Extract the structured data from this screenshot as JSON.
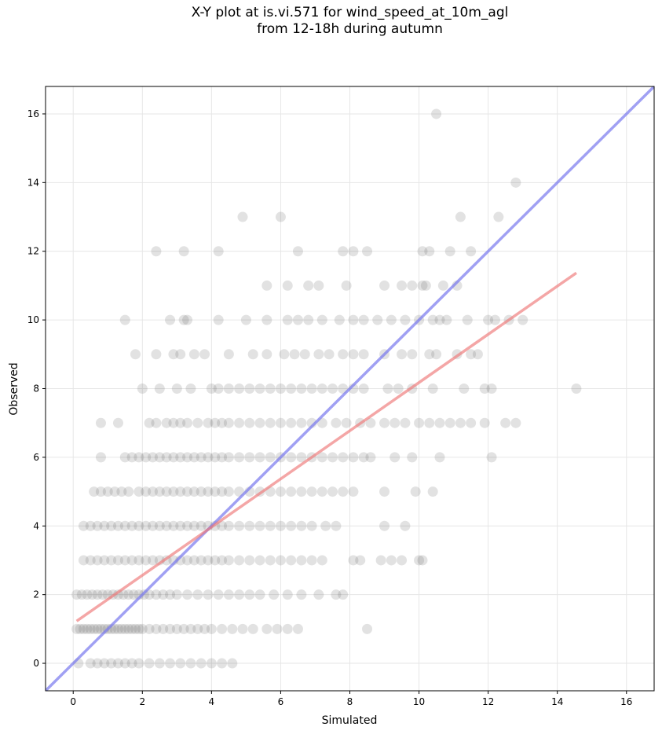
{
  "chart_data": {
    "type": "scatter",
    "title": "X-Y plot at is.vi.571 for wind_speed_at_10m_agl",
    "subtitle": "from 12-18h during autumn",
    "xlabel": "Simulated",
    "ylabel": "Observed",
    "xlim": [
      -0.8,
      16.8
    ],
    "ylim": [
      -0.8,
      16.8
    ],
    "xticks": [
      0,
      2,
      4,
      6,
      8,
      10,
      12,
      14,
      16
    ],
    "yticks": [
      0,
      2,
      4,
      6,
      8,
      10,
      12,
      14,
      16
    ],
    "grid": true,
    "colors": {
      "points": "#555555",
      "identity_line": "#7777ee",
      "regression_line": "#ee7777",
      "grid": "#e6e6e6"
    },
    "identity_line": {
      "x": [
        -0.8,
        16.8
      ],
      "y": [
        -0.8,
        16.8
      ]
    },
    "regression_line": {
      "x": [
        0.1,
        14.55
      ],
      "y": [
        1.23,
        11.37
      ]
    },
    "points": [
      {
        "x": 0.15,
        "y": 0
      },
      {
        "x": 0.5,
        "y": 0
      },
      {
        "x": 0.7,
        "y": 0
      },
      {
        "x": 0.9,
        "y": 0
      },
      {
        "x": 1.1,
        "y": 0
      },
      {
        "x": 1.3,
        "y": 0
      },
      {
        "x": 1.5,
        "y": 0
      },
      {
        "x": 1.7,
        "y": 0
      },
      {
        "x": 1.9,
        "y": 0
      },
      {
        "x": 2.2,
        "y": 0
      },
      {
        "x": 2.5,
        "y": 0
      },
      {
        "x": 2.8,
        "y": 0
      },
      {
        "x": 3.1,
        "y": 0
      },
      {
        "x": 3.4,
        "y": 0
      },
      {
        "x": 3.7,
        "y": 0
      },
      {
        "x": 4.0,
        "y": 0
      },
      {
        "x": 4.3,
        "y": 0
      },
      {
        "x": 4.6,
        "y": 0
      },
      {
        "x": 0.1,
        "y": 1
      },
      {
        "x": 0.2,
        "y": 1
      },
      {
        "x": 0.3,
        "y": 1
      },
      {
        "x": 0.4,
        "y": 1
      },
      {
        "x": 0.5,
        "y": 1
      },
      {
        "x": 0.6,
        "y": 1
      },
      {
        "x": 0.7,
        "y": 1
      },
      {
        "x": 0.8,
        "y": 1
      },
      {
        "x": 0.9,
        "y": 1
      },
      {
        "x": 1.0,
        "y": 1
      },
      {
        "x": 1.1,
        "y": 1
      },
      {
        "x": 1.2,
        "y": 1
      },
      {
        "x": 1.3,
        "y": 1
      },
      {
        "x": 1.4,
        "y": 1
      },
      {
        "x": 1.5,
        "y": 1
      },
      {
        "x": 1.6,
        "y": 1
      },
      {
        "x": 1.7,
        "y": 1
      },
      {
        "x": 1.8,
        "y": 1
      },
      {
        "x": 1.9,
        "y": 1
      },
      {
        "x": 2.0,
        "y": 1
      },
      {
        "x": 2.2,
        "y": 1
      },
      {
        "x": 2.4,
        "y": 1
      },
      {
        "x": 2.6,
        "y": 1
      },
      {
        "x": 2.8,
        "y": 1
      },
      {
        "x": 3.0,
        "y": 1
      },
      {
        "x": 3.2,
        "y": 1
      },
      {
        "x": 3.4,
        "y": 1
      },
      {
        "x": 3.6,
        "y": 1
      },
      {
        "x": 3.8,
        "y": 1
      },
      {
        "x": 4.0,
        "y": 1
      },
      {
        "x": 4.3,
        "y": 1
      },
      {
        "x": 4.6,
        "y": 1
      },
      {
        "x": 4.9,
        "y": 1
      },
      {
        "x": 5.2,
        "y": 1
      },
      {
        "x": 5.6,
        "y": 1
      },
      {
        "x": 5.9,
        "y": 1
      },
      {
        "x": 6.2,
        "y": 1
      },
      {
        "x": 6.5,
        "y": 1
      },
      {
        "x": 8.5,
        "y": 1
      },
      {
        "x": 0.1,
        "y": 2
      },
      {
        "x": 0.25,
        "y": 2
      },
      {
        "x": 0.4,
        "y": 2
      },
      {
        "x": 0.55,
        "y": 2
      },
      {
        "x": 0.7,
        "y": 2
      },
      {
        "x": 0.85,
        "y": 2
      },
      {
        "x": 1.0,
        "y": 2
      },
      {
        "x": 1.15,
        "y": 2
      },
      {
        "x": 1.3,
        "y": 2
      },
      {
        "x": 1.45,
        "y": 2
      },
      {
        "x": 1.6,
        "y": 2
      },
      {
        "x": 1.75,
        "y": 2
      },
      {
        "x": 1.9,
        "y": 2
      },
      {
        "x": 2.05,
        "y": 2
      },
      {
        "x": 2.2,
        "y": 2
      },
      {
        "x": 2.4,
        "y": 2
      },
      {
        "x": 2.6,
        "y": 2
      },
      {
        "x": 2.8,
        "y": 2
      },
      {
        "x": 3.0,
        "y": 2
      },
      {
        "x": 3.3,
        "y": 2
      },
      {
        "x": 3.6,
        "y": 2
      },
      {
        "x": 3.9,
        "y": 2
      },
      {
        "x": 4.2,
        "y": 2
      },
      {
        "x": 4.5,
        "y": 2
      },
      {
        "x": 4.8,
        "y": 2
      },
      {
        "x": 5.1,
        "y": 2
      },
      {
        "x": 5.4,
        "y": 2
      },
      {
        "x": 5.8,
        "y": 2
      },
      {
        "x": 6.2,
        "y": 2
      },
      {
        "x": 6.6,
        "y": 2
      },
      {
        "x": 7.1,
        "y": 2
      },
      {
        "x": 7.6,
        "y": 2
      },
      {
        "x": 7.8,
        "y": 2
      },
      {
        "x": 0.3,
        "y": 3
      },
      {
        "x": 0.5,
        "y": 3
      },
      {
        "x": 0.7,
        "y": 3
      },
      {
        "x": 0.9,
        "y": 3
      },
      {
        "x": 1.1,
        "y": 3
      },
      {
        "x": 1.3,
        "y": 3
      },
      {
        "x": 1.5,
        "y": 3
      },
      {
        "x": 1.7,
        "y": 3
      },
      {
        "x": 1.9,
        "y": 3
      },
      {
        "x": 2.1,
        "y": 3
      },
      {
        "x": 2.3,
        "y": 3
      },
      {
        "x": 2.5,
        "y": 3
      },
      {
        "x": 2.7,
        "y": 3
      },
      {
        "x": 2.9,
        "y": 3
      },
      {
        "x": 3.1,
        "y": 3
      },
      {
        "x": 3.3,
        "y": 3
      },
      {
        "x": 3.5,
        "y": 3
      },
      {
        "x": 3.7,
        "y": 3
      },
      {
        "x": 3.9,
        "y": 3
      },
      {
        "x": 4.1,
        "y": 3
      },
      {
        "x": 4.3,
        "y": 3
      },
      {
        "x": 4.5,
        "y": 3
      },
      {
        "x": 4.8,
        "y": 3
      },
      {
        "x": 5.1,
        "y": 3
      },
      {
        "x": 5.4,
        "y": 3
      },
      {
        "x": 5.7,
        "y": 3
      },
      {
        "x": 6.0,
        "y": 3
      },
      {
        "x": 6.3,
        "y": 3
      },
      {
        "x": 6.6,
        "y": 3
      },
      {
        "x": 6.9,
        "y": 3
      },
      {
        "x": 7.2,
        "y": 3
      },
      {
        "x": 8.1,
        "y": 3
      },
      {
        "x": 8.3,
        "y": 3
      },
      {
        "x": 8.9,
        "y": 3
      },
      {
        "x": 9.2,
        "y": 3
      },
      {
        "x": 9.5,
        "y": 3
      },
      {
        "x": 10.0,
        "y": 3
      },
      {
        "x": 10.1,
        "y": 3
      },
      {
        "x": 0.3,
        "y": 4
      },
      {
        "x": 0.5,
        "y": 4
      },
      {
        "x": 0.7,
        "y": 4
      },
      {
        "x": 0.9,
        "y": 4
      },
      {
        "x": 1.1,
        "y": 4
      },
      {
        "x": 1.3,
        "y": 4
      },
      {
        "x": 1.5,
        "y": 4
      },
      {
        "x": 1.7,
        "y": 4
      },
      {
        "x": 1.9,
        "y": 4
      },
      {
        "x": 2.1,
        "y": 4
      },
      {
        "x": 2.3,
        "y": 4
      },
      {
        "x": 2.5,
        "y": 4
      },
      {
        "x": 2.7,
        "y": 4
      },
      {
        "x": 2.9,
        "y": 4
      },
      {
        "x": 3.1,
        "y": 4
      },
      {
        "x": 3.3,
        "y": 4
      },
      {
        "x": 3.5,
        "y": 4
      },
      {
        "x": 3.7,
        "y": 4
      },
      {
        "x": 3.9,
        "y": 4
      },
      {
        "x": 4.1,
        "y": 4
      },
      {
        "x": 4.3,
        "y": 4
      },
      {
        "x": 4.5,
        "y": 4
      },
      {
        "x": 4.8,
        "y": 4
      },
      {
        "x": 5.1,
        "y": 4
      },
      {
        "x": 5.4,
        "y": 4
      },
      {
        "x": 5.7,
        "y": 4
      },
      {
        "x": 6.0,
        "y": 4
      },
      {
        "x": 6.3,
        "y": 4
      },
      {
        "x": 6.6,
        "y": 4
      },
      {
        "x": 6.9,
        "y": 4
      },
      {
        "x": 7.3,
        "y": 4
      },
      {
        "x": 7.6,
        "y": 4
      },
      {
        "x": 9.0,
        "y": 4
      },
      {
        "x": 9.6,
        "y": 4
      },
      {
        "x": 0.6,
        "y": 5
      },
      {
        "x": 0.8,
        "y": 5
      },
      {
        "x": 1.0,
        "y": 5
      },
      {
        "x": 1.2,
        "y": 5
      },
      {
        "x": 1.4,
        "y": 5
      },
      {
        "x": 1.6,
        "y": 5
      },
      {
        "x": 1.9,
        "y": 5
      },
      {
        "x": 2.1,
        "y": 5
      },
      {
        "x": 2.3,
        "y": 5
      },
      {
        "x": 2.5,
        "y": 5
      },
      {
        "x": 2.7,
        "y": 5
      },
      {
        "x": 2.9,
        "y": 5
      },
      {
        "x": 3.1,
        "y": 5
      },
      {
        "x": 3.3,
        "y": 5
      },
      {
        "x": 3.5,
        "y": 5
      },
      {
        "x": 3.7,
        "y": 5
      },
      {
        "x": 3.9,
        "y": 5
      },
      {
        "x": 4.1,
        "y": 5
      },
      {
        "x": 4.3,
        "y": 5
      },
      {
        "x": 4.5,
        "y": 5
      },
      {
        "x": 4.8,
        "y": 5
      },
      {
        "x": 5.1,
        "y": 5
      },
      {
        "x": 5.4,
        "y": 5
      },
      {
        "x": 5.7,
        "y": 5
      },
      {
        "x": 6.0,
        "y": 5
      },
      {
        "x": 6.3,
        "y": 5
      },
      {
        "x": 6.6,
        "y": 5
      },
      {
        "x": 6.9,
        "y": 5
      },
      {
        "x": 7.2,
        "y": 5
      },
      {
        "x": 7.5,
        "y": 5
      },
      {
        "x": 7.8,
        "y": 5
      },
      {
        "x": 8.1,
        "y": 5
      },
      {
        "x": 9.0,
        "y": 5
      },
      {
        "x": 9.9,
        "y": 5
      },
      {
        "x": 10.4,
        "y": 5
      },
      {
        "x": 0.8,
        "y": 6
      },
      {
        "x": 1.5,
        "y": 6
      },
      {
        "x": 1.7,
        "y": 6
      },
      {
        "x": 1.9,
        "y": 6
      },
      {
        "x": 2.1,
        "y": 6
      },
      {
        "x": 2.3,
        "y": 6
      },
      {
        "x": 2.5,
        "y": 6
      },
      {
        "x": 2.7,
        "y": 6
      },
      {
        "x": 2.9,
        "y": 6
      },
      {
        "x": 3.1,
        "y": 6
      },
      {
        "x": 3.3,
        "y": 6
      },
      {
        "x": 3.5,
        "y": 6
      },
      {
        "x": 3.7,
        "y": 6
      },
      {
        "x": 3.9,
        "y": 6
      },
      {
        "x": 4.1,
        "y": 6
      },
      {
        "x": 4.3,
        "y": 6
      },
      {
        "x": 4.5,
        "y": 6
      },
      {
        "x": 4.8,
        "y": 6
      },
      {
        "x": 5.1,
        "y": 6
      },
      {
        "x": 5.4,
        "y": 6
      },
      {
        "x": 5.7,
        "y": 6
      },
      {
        "x": 6.0,
        "y": 6
      },
      {
        "x": 6.3,
        "y": 6
      },
      {
        "x": 6.6,
        "y": 6
      },
      {
        "x": 6.9,
        "y": 6
      },
      {
        "x": 7.2,
        "y": 6
      },
      {
        "x": 7.5,
        "y": 6
      },
      {
        "x": 7.8,
        "y": 6
      },
      {
        "x": 8.1,
        "y": 6
      },
      {
        "x": 8.4,
        "y": 6
      },
      {
        "x": 8.6,
        "y": 6
      },
      {
        "x": 9.3,
        "y": 6
      },
      {
        "x": 9.8,
        "y": 6
      },
      {
        "x": 10.6,
        "y": 6
      },
      {
        "x": 12.1,
        "y": 6
      },
      {
        "x": 0.8,
        "y": 7
      },
      {
        "x": 1.3,
        "y": 7
      },
      {
        "x": 2.2,
        "y": 7
      },
      {
        "x": 2.4,
        "y": 7
      },
      {
        "x": 2.7,
        "y": 7
      },
      {
        "x": 2.9,
        "y": 7
      },
      {
        "x": 3.1,
        "y": 7
      },
      {
        "x": 3.3,
        "y": 7
      },
      {
        "x": 3.6,
        "y": 7
      },
      {
        "x": 3.9,
        "y": 7
      },
      {
        "x": 4.1,
        "y": 7
      },
      {
        "x": 4.3,
        "y": 7
      },
      {
        "x": 4.5,
        "y": 7
      },
      {
        "x": 4.8,
        "y": 7
      },
      {
        "x": 5.1,
        "y": 7
      },
      {
        "x": 5.4,
        "y": 7
      },
      {
        "x": 5.7,
        "y": 7
      },
      {
        "x": 6.0,
        "y": 7
      },
      {
        "x": 6.3,
        "y": 7
      },
      {
        "x": 6.6,
        "y": 7
      },
      {
        "x": 6.9,
        "y": 7
      },
      {
        "x": 7.2,
        "y": 7
      },
      {
        "x": 7.6,
        "y": 7
      },
      {
        "x": 7.9,
        "y": 7
      },
      {
        "x": 8.3,
        "y": 7
      },
      {
        "x": 8.6,
        "y": 7
      },
      {
        "x": 9.0,
        "y": 7
      },
      {
        "x": 9.3,
        "y": 7
      },
      {
        "x": 9.6,
        "y": 7
      },
      {
        "x": 10.0,
        "y": 7
      },
      {
        "x": 10.3,
        "y": 7
      },
      {
        "x": 10.6,
        "y": 7
      },
      {
        "x": 10.9,
        "y": 7
      },
      {
        "x": 11.2,
        "y": 7
      },
      {
        "x": 11.5,
        "y": 7
      },
      {
        "x": 11.9,
        "y": 7
      },
      {
        "x": 12.5,
        "y": 7
      },
      {
        "x": 12.8,
        "y": 7
      },
      {
        "x": 2.0,
        "y": 8
      },
      {
        "x": 2.5,
        "y": 8
      },
      {
        "x": 3.0,
        "y": 8
      },
      {
        "x": 3.4,
        "y": 8
      },
      {
        "x": 4.0,
        "y": 8
      },
      {
        "x": 4.2,
        "y": 8
      },
      {
        "x": 4.5,
        "y": 8
      },
      {
        "x": 4.8,
        "y": 8
      },
      {
        "x": 5.1,
        "y": 8
      },
      {
        "x": 5.4,
        "y": 8
      },
      {
        "x": 5.7,
        "y": 8
      },
      {
        "x": 6.0,
        "y": 8
      },
      {
        "x": 6.3,
        "y": 8
      },
      {
        "x": 6.6,
        "y": 8
      },
      {
        "x": 6.9,
        "y": 8
      },
      {
        "x": 7.2,
        "y": 8
      },
      {
        "x": 7.5,
        "y": 8
      },
      {
        "x": 7.8,
        "y": 8
      },
      {
        "x": 8.1,
        "y": 8
      },
      {
        "x": 8.4,
        "y": 8
      },
      {
        "x": 9.1,
        "y": 8
      },
      {
        "x": 9.4,
        "y": 8
      },
      {
        "x": 9.8,
        "y": 8
      },
      {
        "x": 10.4,
        "y": 8
      },
      {
        "x": 11.3,
        "y": 8
      },
      {
        "x": 11.9,
        "y": 8
      },
      {
        "x": 12.1,
        "y": 8
      },
      {
        "x": 14.55,
        "y": 8
      },
      {
        "x": 1.8,
        "y": 9
      },
      {
        "x": 2.4,
        "y": 9
      },
      {
        "x": 2.9,
        "y": 9
      },
      {
        "x": 3.1,
        "y": 9
      },
      {
        "x": 3.5,
        "y": 9
      },
      {
        "x": 3.8,
        "y": 9
      },
      {
        "x": 4.5,
        "y": 9
      },
      {
        "x": 5.2,
        "y": 9
      },
      {
        "x": 5.6,
        "y": 9
      },
      {
        "x": 6.1,
        "y": 9
      },
      {
        "x": 6.4,
        "y": 9
      },
      {
        "x": 6.7,
        "y": 9
      },
      {
        "x": 7.1,
        "y": 9
      },
      {
        "x": 7.4,
        "y": 9
      },
      {
        "x": 7.8,
        "y": 9
      },
      {
        "x": 8.1,
        "y": 9
      },
      {
        "x": 8.4,
        "y": 9
      },
      {
        "x": 9.0,
        "y": 9
      },
      {
        "x": 9.5,
        "y": 9
      },
      {
        "x": 9.8,
        "y": 9
      },
      {
        "x": 10.3,
        "y": 9
      },
      {
        "x": 10.5,
        "y": 9
      },
      {
        "x": 11.1,
        "y": 9
      },
      {
        "x": 11.5,
        "y": 9
      },
      {
        "x": 11.7,
        "y": 9
      },
      {
        "x": 1.5,
        "y": 10
      },
      {
        "x": 2.8,
        "y": 10
      },
      {
        "x": 3.2,
        "y": 10
      },
      {
        "x": 3.3,
        "y": 10
      },
      {
        "x": 4.2,
        "y": 10
      },
      {
        "x": 5.0,
        "y": 10
      },
      {
        "x": 5.6,
        "y": 10
      },
      {
        "x": 6.2,
        "y": 10
      },
      {
        "x": 6.5,
        "y": 10
      },
      {
        "x": 6.8,
        "y": 10
      },
      {
        "x": 7.2,
        "y": 10
      },
      {
        "x": 7.7,
        "y": 10
      },
      {
        "x": 8.1,
        "y": 10
      },
      {
        "x": 8.4,
        "y": 10
      },
      {
        "x": 8.8,
        "y": 10
      },
      {
        "x": 9.2,
        "y": 10
      },
      {
        "x": 9.6,
        "y": 10
      },
      {
        "x": 10.0,
        "y": 10
      },
      {
        "x": 10.4,
        "y": 10
      },
      {
        "x": 10.6,
        "y": 10
      },
      {
        "x": 10.8,
        "y": 10
      },
      {
        "x": 11.4,
        "y": 10
      },
      {
        "x": 12.0,
        "y": 10
      },
      {
        "x": 12.2,
        "y": 10
      },
      {
        "x": 12.6,
        "y": 10
      },
      {
        "x": 13.0,
        "y": 10
      },
      {
        "x": 5.6,
        "y": 11
      },
      {
        "x": 6.2,
        "y": 11
      },
      {
        "x": 6.8,
        "y": 11
      },
      {
        "x": 7.1,
        "y": 11
      },
      {
        "x": 7.9,
        "y": 11
      },
      {
        "x": 9.0,
        "y": 11
      },
      {
        "x": 9.5,
        "y": 11
      },
      {
        "x": 9.8,
        "y": 11
      },
      {
        "x": 10.1,
        "y": 11
      },
      {
        "x": 10.2,
        "y": 11
      },
      {
        "x": 10.7,
        "y": 11
      },
      {
        "x": 11.1,
        "y": 11
      },
      {
        "x": 2.4,
        "y": 12
      },
      {
        "x": 3.2,
        "y": 12
      },
      {
        "x": 4.2,
        "y": 12
      },
      {
        "x": 6.5,
        "y": 12
      },
      {
        "x": 7.8,
        "y": 12
      },
      {
        "x": 8.1,
        "y": 12
      },
      {
        "x": 8.5,
        "y": 12
      },
      {
        "x": 10.1,
        "y": 12
      },
      {
        "x": 10.3,
        "y": 12
      },
      {
        "x": 10.9,
        "y": 12
      },
      {
        "x": 11.5,
        "y": 12
      },
      {
        "x": 4.9,
        "y": 13
      },
      {
        "x": 6.0,
        "y": 13
      },
      {
        "x": 11.2,
        "y": 13
      },
      {
        "x": 12.3,
        "y": 13
      },
      {
        "x": 12.8,
        "y": 14
      },
      {
        "x": 10.5,
        "y": 16
      }
    ]
  }
}
